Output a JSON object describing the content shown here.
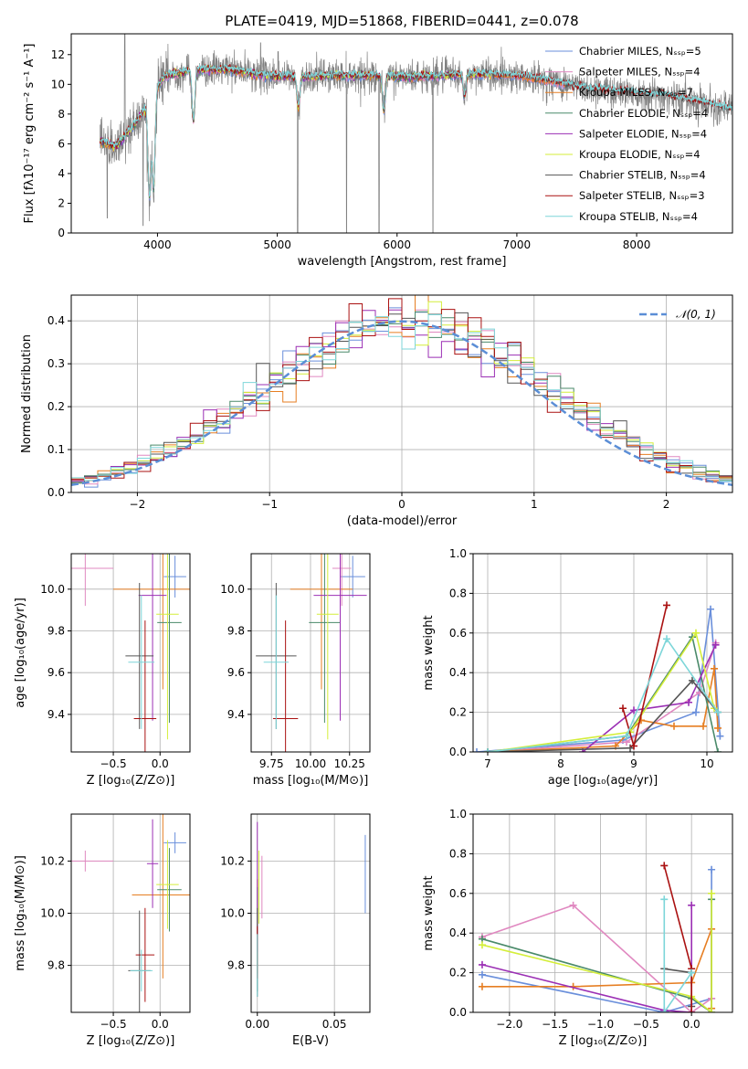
{
  "title": "PLATE=0419, MJD=51868, FIBERID=0441, z=0.078",
  "colors": {
    "Chabrier MILES": "#6a8fdb",
    "Salpeter MILES": "#e088c0",
    "Kroupa MILES": "#e67e22",
    "Chabrier ELODIE": "#4a8a6a",
    "Salpeter ELODIE": "#9b2fb4",
    "Kroupa ELODIE": "#d4ee3a",
    "Chabrier STELIB": "#555555",
    "Salpeter STELIB": "#aa1111",
    "Kroupa STELIB": "#7dd6d9",
    "data": "#808080",
    "normal": "#5b8ed6"
  },
  "chart_data": [
    {
      "id": "spectrum",
      "type": "line",
      "title": "PLATE=0419, MJD=51868, FIBERID=0441, z=0.078",
      "xlabel": "wavelength [Angstrom, rest frame]",
      "ylabel": "Flux [fλ10⁻¹⁷ erg cm⁻² s⁻¹ A⁻¹]",
      "xlim": [
        3280,
        8800
      ],
      "ylim": [
        0,
        13.4
      ],
      "xticks": [
        4000,
        5000,
        6000,
        7000,
        8000
      ],
      "yticks": [
        0,
        2,
        4,
        6,
        8,
        10,
        12
      ],
      "legend_position": "top-right",
      "legend": [
        "Chabrier MILES, Nₛₛₚ=5",
        "Salpeter MILES, Nₛₛₚ=4",
        "Kroupa MILES, Nₛₛₚ=7",
        "Chabrier ELODIE, Nₛₛₚ=4",
        "Salpeter ELODIE, Nₛₛₚ=4",
        "Kroupa ELODIE, Nₛₛₚ=4",
        "Chabrier STELIB, Nₛₛₚ=4",
        "Salpeter STELIB, Nₛₛₚ=3",
        "Kroupa STELIB, Nₛₛₚ=4"
      ],
      "continuum": [
        [
          3520,
          6.2
        ],
        [
          3650,
          5.8
        ],
        [
          3800,
          7.2
        ],
        [
          3950,
          9.0
        ],
        [
          4050,
          10.5
        ],
        [
          4300,
          11.0
        ],
        [
          4600,
          11.0
        ],
        [
          4900,
          10.6
        ],
        [
          5200,
          10.5
        ],
        [
          5500,
          10.6
        ],
        [
          5800,
          10.6
        ],
        [
          6100,
          10.5
        ],
        [
          6400,
          10.6
        ],
        [
          6700,
          10.7
        ],
        [
          7000,
          10.6
        ],
        [
          7300,
          10.2
        ],
        [
          7600,
          9.7
        ],
        [
          7900,
          9.5
        ],
        [
          8200,
          9.3
        ],
        [
          8500,
          8.9
        ],
        [
          8800,
          8.3
        ]
      ],
      "dips": [
        [
          3933,
          2.5
        ],
        [
          3968,
          3.0
        ],
        [
          4300,
          7.5
        ],
        [
          5175,
          8.5
        ],
        [
          5890,
          8.2
        ],
        [
          6563,
          9.2
        ]
      ],
      "spikes": [
        [
          3727,
          13.4
        ],
        [
          4861,
          12.8
        ],
        [
          5007,
          12.2
        ],
        [
          6300,
          11.8
        ]
      ],
      "data_bad_pixels": [
        [
          3580,
          1.0
        ],
        [
          3880,
          0.5
        ],
        [
          5170,
          0.0
        ],
        [
          5578,
          0.0
        ],
        [
          5850,
          0.0
        ],
        [
          6300,
          0.0
        ]
      ],
      "model_end": [
        {
          "model": "Chabrier MILES",
          "end": 7400
        },
        {
          "model": "Salpeter MILES",
          "end": 7400
        },
        {
          "model": "Kroupa MILES",
          "end": 7400
        },
        {
          "model": "Chabrier ELODIE",
          "end": 6800
        },
        {
          "model": "Salpeter ELODIE",
          "end": 6800
        },
        {
          "model": "Kroupa ELODIE",
          "end": 6800
        },
        {
          "model": "Chabrier STELIB",
          "end": 8800
        },
        {
          "model": "Salpeter STELIB",
          "end": 8800
        },
        {
          "model": "Kroupa STELIB",
          "end": 8800
        }
      ]
    },
    {
      "id": "residuals",
      "type": "line",
      "xlabel": "(data-model)/error",
      "ylabel": "Normed distribution",
      "xlim": [
        -2.5,
        2.5
      ],
      "ylim": [
        0,
        0.46
      ],
      "xticks": [
        -2,
        -1,
        0,
        1,
        2
      ],
      "yticks": [
        0.0,
        0.1,
        0.2,
        0.3,
        0.4
      ],
      "legend_position": "top-right",
      "legend": [
        "𝒩(0, 1)"
      ],
      "bin_width": 0.1,
      "series_order": [
        "Chabrier MILES",
        "Salpeter MILES",
        "Kroupa MILES",
        "Chabrier ELODIE",
        "Salpeter ELODIE",
        "Kroupa ELODIE",
        "Chabrier STELIB",
        "Salpeter STELIB",
        "Kroupa STELIB"
      ]
    },
    {
      "id": "age-vs-Z",
      "type": "scatter",
      "xlabel": "Z [log₁₀(Z/Z⊙)]",
      "ylabel": "age  [log₁₀(age/yr)]",
      "xlim": [
        -0.95,
        0.32
      ],
      "ylim": [
        9.22,
        10.17
      ],
      "xticks": [
        -0.5,
        0.0
      ],
      "yticks": [
        9.4,
        9.6,
        9.8,
        10.0
      ],
      "points": [
        {
          "model": "Chabrier MILES",
          "x": 0.16,
          "y": 10.06,
          "xerr": 0.12,
          "yerr": 0.1
        },
        {
          "model": "Salpeter MILES",
          "x": -0.8,
          "y": 10.1,
          "xerr": 0.3,
          "yerr": 0.18
        },
        {
          "model": "Kroupa MILES",
          "x": 0.03,
          "y": 10.0,
          "xerr": 0.53,
          "yerr": 0.48
        },
        {
          "model": "Chabrier ELODIE",
          "x": 0.1,
          "y": 9.84,
          "xerr": 0.13,
          "yerr": 0.48
        },
        {
          "model": "Salpeter ELODIE",
          "x": -0.08,
          "y": 9.97,
          "xerr": 0.15,
          "yerr": 0.6
        },
        {
          "model": "Kroupa ELODIE",
          "x": 0.08,
          "y": 9.88,
          "xerr": 0.12,
          "yerr": 0.6
        },
        {
          "model": "Chabrier STELIB",
          "x": -0.22,
          "y": 9.68,
          "xerr": 0.15,
          "yerr": 0.35
        },
        {
          "model": "Salpeter STELIB",
          "x": -0.16,
          "y": 9.38,
          "xerr": 0.12,
          "yerr": 0.47
        },
        {
          "model": "Kroupa STELIB",
          "x": -0.2,
          "y": 9.65,
          "xerr": 0.14,
          "yerr": 0.32
        }
      ]
    },
    {
      "id": "age-vs-mass",
      "type": "scatter",
      "xlabel": "mass [log₁₀(M/M⊙)]",
      "xlim": [
        9.62,
        10.38
      ],
      "ylim": [
        9.22,
        10.17
      ],
      "xticks": [
        9.75,
        10.0,
        10.25
      ],
      "yticks": [
        9.4,
        9.6,
        9.8,
        10.0
      ],
      "points": [
        {
          "model": "Chabrier MILES",
          "x": 10.27,
          "y": 10.06,
          "xerr": 0.08,
          "yerr": 0.1
        },
        {
          "model": "Salpeter MILES",
          "x": 10.2,
          "y": 10.1,
          "xerr": 0.06,
          "yerr": 0.18
        },
        {
          "model": "Kroupa MILES",
          "x": 10.07,
          "y": 10.0,
          "xerr": 0.2,
          "yerr": 0.48
        },
        {
          "model": "Chabrier ELODIE",
          "x": 10.09,
          "y": 9.84,
          "xerr": 0.1,
          "yerr": 0.48
        },
        {
          "model": "Salpeter ELODIE",
          "x": 10.19,
          "y": 9.97,
          "xerr": 0.17,
          "yerr": 0.6
        },
        {
          "model": "Kroupa ELODIE",
          "x": 10.11,
          "y": 9.88,
          "xerr": 0.07,
          "yerr": 0.6
        },
        {
          "model": "Chabrier STELIB",
          "x": 9.78,
          "y": 9.68,
          "xerr": 0.13,
          "yerr": 0.35
        },
        {
          "model": "Salpeter STELIB",
          "x": 9.84,
          "y": 9.38,
          "xerr": 0.08,
          "yerr": 0.47
        },
        {
          "model": "Kroupa STELIB",
          "x": 9.78,
          "y": 9.65,
          "xerr": 0.08,
          "yerr": 0.32
        }
      ]
    },
    {
      "id": "massweight-vs-age",
      "type": "line",
      "xlabel": "age  [log₁₀(age/yr)]",
      "ylabel": "mass weight",
      "xlim": [
        6.8,
        10.35
      ],
      "ylim": [
        0.0,
        1.0
      ],
      "xticks": [
        7,
        8,
        9,
        10
      ],
      "yticks": [
        0.0,
        0.2,
        0.4,
        0.6,
        0.8,
        1.0
      ],
      "series": [
        {
          "model": "Chabrier MILES",
          "x": [
            6.85,
            8.85,
            9.85,
            10.05,
            10.18
          ],
          "y": [
            0.0,
            0.06,
            0.2,
            0.72,
            0.08
          ]
        },
        {
          "model": "Salpeter MILES",
          "x": [
            7.0,
            8.9,
            9.9,
            10.12
          ],
          "y": [
            0.0,
            0.05,
            0.3,
            0.55
          ]
        },
        {
          "model": "Kroupa MILES",
          "x": [
            7.0,
            8.75,
            9.1,
            9.55,
            9.95,
            10.1,
            10.15
          ],
          "y": [
            0.0,
            0.03,
            0.16,
            0.13,
            0.13,
            0.42,
            0.12
          ]
        },
        {
          "model": "Chabrier ELODIE",
          "x": [
            7.0,
            8.9,
            9.8,
            10.15
          ],
          "y": [
            0.0,
            0.08,
            0.58,
            0.0
          ]
        },
        {
          "model": "Salpeter ELODIE",
          "x": [
            8.3,
            9.0,
            9.75,
            10.12
          ],
          "y": [
            0.0,
            0.21,
            0.25,
            0.54
          ]
        },
        {
          "model": "Kroupa ELODIE",
          "x": [
            7.0,
            8.95,
            9.85,
            10.1
          ],
          "y": [
            0.0,
            0.1,
            0.6,
            0.22
          ]
        },
        {
          "model": "Chabrier STELIB",
          "x": [
            7.0,
            8.95,
            9.8,
            10.15
          ],
          "y": [
            0.0,
            0.02,
            0.36,
            0.2
          ]
        },
        {
          "model": "Salpeter STELIB",
          "x": [
            8.85,
            9.0,
            9.45
          ],
          "y": [
            0.22,
            0.03,
            0.74
          ]
        },
        {
          "model": "Kroupa STELIB",
          "x": [
            7.0,
            8.9,
            9.45,
            10.15
          ],
          "y": [
            0.0,
            0.08,
            0.57,
            0.2
          ]
        }
      ]
    },
    {
      "id": "mass-vs-Z",
      "type": "scatter",
      "xlabel": "Z [log₁₀(Z/Z⊙)]",
      "ylabel": "mass [log₁₀(M/M⊙)]",
      "xlim": [
        -0.95,
        0.32
      ],
      "ylim": [
        9.62,
        10.38
      ],
      "xticks": [
        -0.5,
        0.0
      ],
      "yticks": [
        9.8,
        10.0,
        10.2
      ],
      "points": [
        {
          "model": "Chabrier MILES",
          "x": 0.16,
          "y": 10.27,
          "xerr": 0.12,
          "yerr": 0.04
        },
        {
          "model": "Salpeter MILES",
          "x": -0.8,
          "y": 10.2,
          "xerr": 0.3,
          "yerr": 0.04
        },
        {
          "model": "Kroupa MILES",
          "x": 0.03,
          "y": 10.07,
          "xerr": 0.33,
          "yerr": 0.32
        },
        {
          "model": "Chabrier ELODIE",
          "x": 0.1,
          "y": 10.09,
          "xerr": 0.13,
          "yerr": 0.16
        },
        {
          "model": "Salpeter ELODIE",
          "x": -0.08,
          "y": 10.19,
          "xerr": 0.06,
          "yerr": 0.17
        },
        {
          "model": "Kroupa ELODIE",
          "x": 0.08,
          "y": 10.11,
          "xerr": 0.12,
          "yerr": 0.17
        },
        {
          "model": "Chabrier STELIB",
          "x": -0.22,
          "y": 9.78,
          "xerr": 0.12,
          "yerr": 0.23
        },
        {
          "model": "Salpeter STELIB",
          "x": -0.16,
          "y": 9.84,
          "xerr": 0.1,
          "yerr": 0.18
        },
        {
          "model": "Kroupa STELIB",
          "x": -0.2,
          "y": 9.78,
          "xerr": 0.12,
          "yerr": 0.08
        }
      ]
    },
    {
      "id": "mass-vs-ebv",
      "type": "scatter",
      "xlabel": "E(B-V)",
      "xlim": [
        -0.004,
        0.073
      ],
      "ylim": [
        9.62,
        10.38
      ],
      "xticks": [
        0.0,
        0.05
      ],
      "yticks": [
        9.8,
        10.0,
        10.2
      ],
      "points": [
        {
          "model": "Chabrier MILES",
          "x": 0.07,
          "y": 10.15,
          "yerr": 0.15
        },
        {
          "model": "Salpeter MILES",
          "x": 0.003,
          "y": 10.1,
          "yerr": 0.12
        },
        {
          "model": "Kroupa MILES",
          "x": 0.0,
          "y": 9.95,
          "yerr": 0.18
        },
        {
          "model": "Chabrier ELODIE",
          "x": 0.0,
          "y": 9.9,
          "yerr": 0.2
        },
        {
          "model": "Salpeter ELODIE",
          "x": 0.0,
          "y": 10.1,
          "yerr": 0.25
        },
        {
          "model": "Kroupa ELODIE",
          "x": 0.001,
          "y": 10.1,
          "yerr": 0.14
        },
        {
          "model": "Chabrier STELIB",
          "x": 0.0,
          "y": 9.85,
          "yerr": 0.17
        },
        {
          "model": "Salpeter STELIB",
          "x": 0.0,
          "y": 9.85,
          "yerr": 0.1
        },
        {
          "model": "Kroupa STELIB",
          "x": 0.0,
          "y": 9.8,
          "yerr": 0.12
        }
      ]
    },
    {
      "id": "massweight-vs-Z",
      "type": "line",
      "xlabel": "Z [log₁₀(Z/Z⊙)]",
      "ylabel": "mass weight",
      "xlim": [
        -2.4,
        0.45
      ],
      "ylim": [
        0.0,
        1.0
      ],
      "xticks": [
        -2.0,
        -1.5,
        -1.0,
        -0.5,
        0.0
      ],
      "yticks": [
        0.0,
        0.2,
        0.4,
        0.6,
        0.8,
        1.0
      ],
      "series": [
        {
          "model": "Chabrier MILES",
          "x": [
            -2.3,
            -0.3,
            0.22,
            0.22
          ],
          "y": [
            0.19,
            0.0,
            0.07,
            0.72
          ]
        },
        {
          "model": "Salpeter MILES",
          "x": [
            -2.3,
            -1.3,
            0.0,
            0.22
          ],
          "y": [
            0.38,
            0.54,
            0.0,
            0.07
          ]
        },
        {
          "model": "Kroupa MILES",
          "x": [
            -2.3,
            -1.3,
            0.0,
            0.22,
            0.22
          ],
          "y": [
            0.13,
            0.13,
            0.15,
            0.42,
            0.02
          ]
        },
        {
          "model": "Chabrier ELODIE",
          "x": [
            -2.3,
            0.0,
            0.22,
            0.22
          ],
          "y": [
            0.37,
            0.07,
            0.0,
            0.57
          ]
        },
        {
          "model": "Salpeter ELODIE",
          "x": [
            -2.3,
            -0.3,
            0.0,
            0.0
          ],
          "y": [
            0.24,
            0.01,
            0.0,
            0.54
          ]
        },
        {
          "model": "Kroupa ELODIE",
          "x": [
            -2.3,
            0.0,
            0.22,
            0.22
          ],
          "y": [
            0.34,
            0.08,
            0.0,
            0.6
          ]
        },
        {
          "model": "Chabrier STELIB",
          "x": [
            -0.3,
            0.0,
            0.0
          ],
          "y": [
            0.22,
            0.2,
            0.03
          ]
        },
        {
          "model": "Salpeter STELIB",
          "x": [
            -0.3,
            0.0,
            0.0
          ],
          "y": [
            0.74,
            0.22,
            0.0
          ]
        },
        {
          "model": "Kroupa STELIB",
          "x": [
            -0.3,
            -0.3,
            0.0
          ],
          "y": [
            0.57,
            0.0,
            0.2
          ]
        }
      ]
    }
  ]
}
